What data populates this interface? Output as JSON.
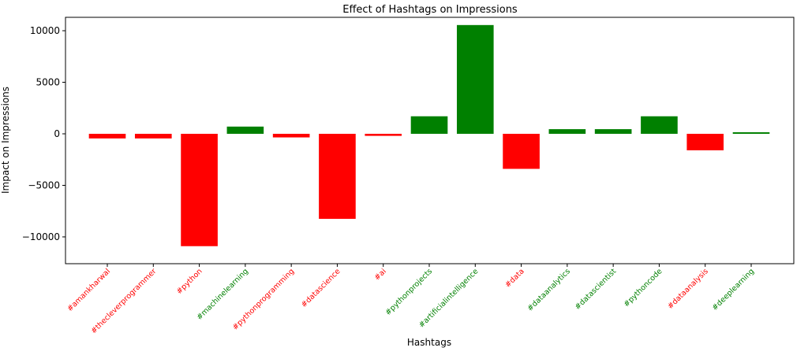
{
  "chart_data": {
    "type": "bar",
    "title": "Effect of Hashtags on Impressions",
    "xlabel": "Hashtags",
    "ylabel": "Impact on Impressions",
    "ylim": [
      -12600,
      11300
    ],
    "yticks": [
      10000,
      5000,
      0,
      -5000,
      -10000
    ],
    "ytick_labels": [
      "10000",
      "5000",
      "0",
      "−5000",
      "−10000"
    ],
    "grid": false,
    "legend": "none",
    "colors": {
      "positive": "#008000",
      "negative": "#ff0000"
    },
    "categories": [
      "#amankharwal",
      "#thecleverprogrammer",
      "#python",
      "#machinelearning",
      "#pythonprogramming",
      "#datascience",
      "#ai",
      "#pythonprojects",
      "#artificialintelligence",
      "#data",
      "#dataanalytics",
      "#datascientist",
      "#pythoncode",
      "#dataanalysis",
      "#deeplearning"
    ],
    "values": [
      -450,
      -450,
      -10900,
      700,
      -350,
      -8250,
      -200,
      1700,
      10550,
      -3400,
      450,
      450,
      1700,
      -1600,
      150
    ]
  }
}
